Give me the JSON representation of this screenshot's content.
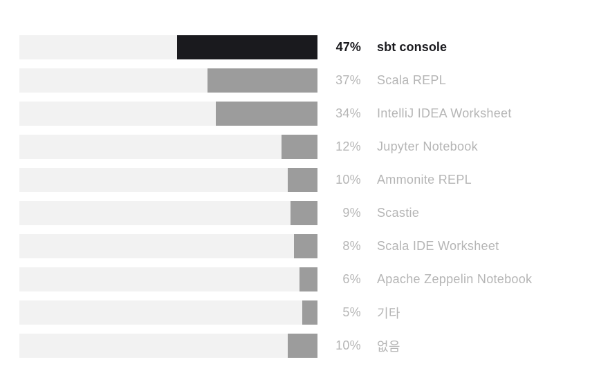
{
  "chart_data": {
    "type": "bar",
    "orientation": "horizontal",
    "title": "",
    "xlabel": "",
    "ylabel": "",
    "xlim": [
      0,
      100
    ],
    "grid": false,
    "legend": false,
    "bar_anchor": "right",
    "highlight_index": 0,
    "categories": [
      "sbt console",
      "Scala REPL",
      "IntelliJ IDEA Worksheet",
      "Jupyter Notebook",
      "Ammonite REPL",
      "Scastie",
      "Scala IDE Worksheet",
      "Apache Zeppelin Notebook",
      "기타",
      "없음"
    ],
    "values": [
      47,
      37,
      34,
      12,
      10,
      9,
      8,
      6,
      5,
      10
    ],
    "value_labels": [
      "47%",
      "37%",
      "34%",
      "12%",
      "10%",
      "9%",
      "8%",
      "6%",
      "5%",
      "10%"
    ]
  },
  "colors": {
    "background": "#ffffff",
    "bar_track": "#f2f2f2",
    "bar_fill": "#9c9c9c",
    "bar_fill_highlight": "#1a1a1e",
    "label_text": "#b5b5b5",
    "label_text_highlight": "#1a1a1e"
  }
}
